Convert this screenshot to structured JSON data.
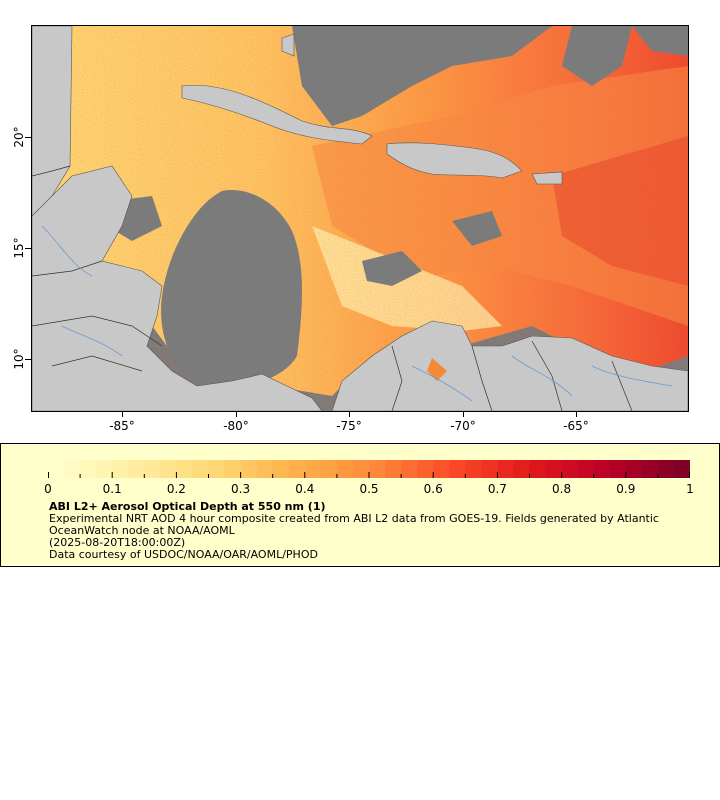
{
  "map": {
    "x_ticks": [
      "-85°",
      "-80°",
      "-75°",
      "-70°",
      "-65°"
    ],
    "y_ticks": [
      "20°",
      "15°",
      "10°"
    ],
    "colors": {
      "no_data": "#7b7b7b",
      "land": "#c8c8c8",
      "border": "#555555",
      "river": "#6b9bd1"
    }
  },
  "legend": {
    "colorbar_ticks": [
      "0",
      "0.1",
      "0.2",
      "0.3",
      "0.4",
      "0.5",
      "0.6",
      "0.7",
      "0.8",
      "0.9",
      "1"
    ],
    "colorbar_stops": [
      "#ffffcc",
      "#ffeda0",
      "#fed976",
      "#feb24c",
      "#fd8d3c",
      "#fc4e2a",
      "#e31a1c",
      "#bd0026",
      "#800026"
    ],
    "title": "ABI L2+ Aerosol Optical Depth at 550 nm (1)",
    "description": "Experimental NRT AOD 4 hour composite created from ABI L2 data from GOES-19. Fields generated by Atlantic OceanWatch node at NOAA/AOML",
    "timestamp": "(2025-08-20T18:00:00Z)",
    "credit": "Data courtesy of USDOC/NOAA/OAR/AOML/PHOD"
  }
}
